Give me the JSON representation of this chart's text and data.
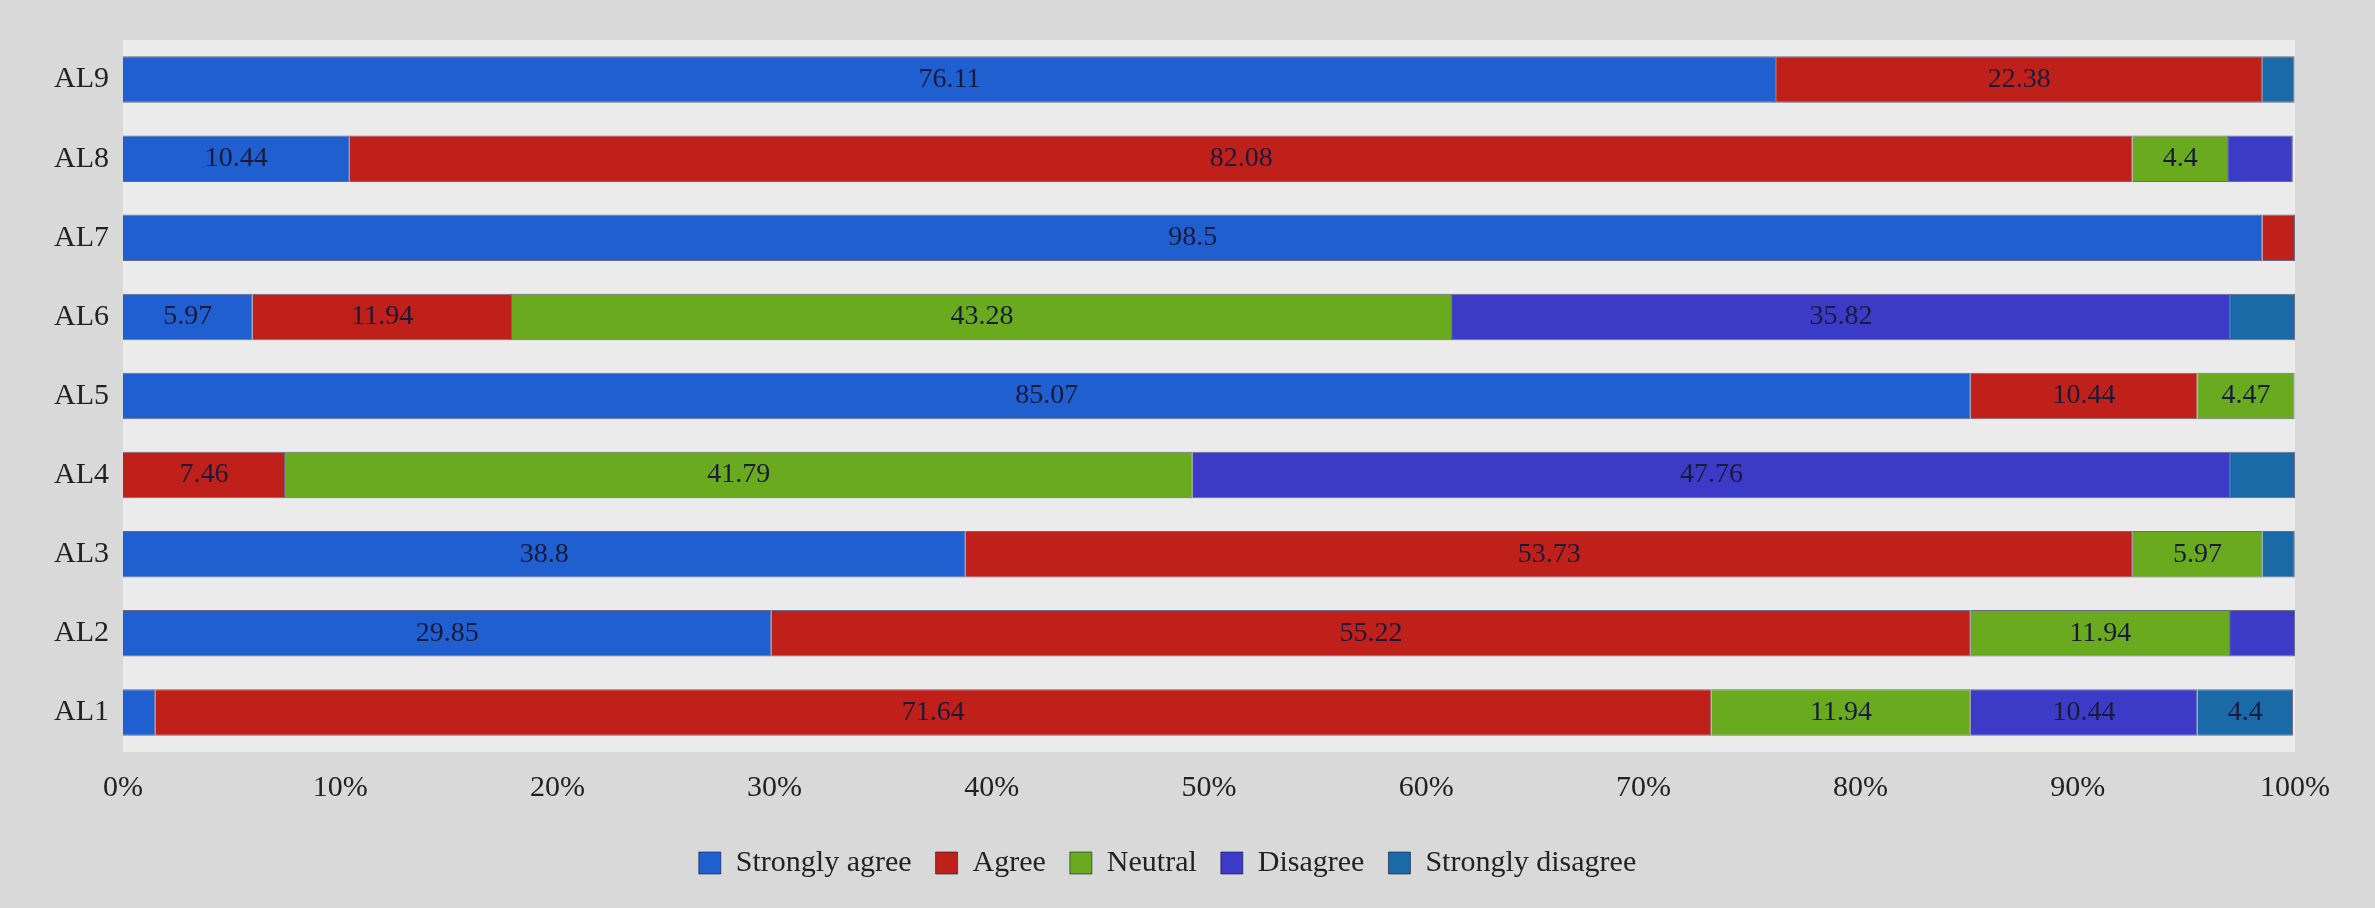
{
  "chart_data": {
    "type": "bar",
    "orientation": "horizontal",
    "stacked": true,
    "categories": [
      "AL9",
      "AL8",
      "AL7",
      "AL6",
      "AL5",
      "AL4",
      "AL3",
      "AL2",
      "AL1"
    ],
    "series": [
      {
        "name": "Strongly agree",
        "color": "#1f5fd0",
        "values": [
          76.11,
          10.44,
          98.5,
          5.97,
          85.07,
          null,
          38.8,
          29.85,
          1.49
        ],
        "value_labels": [
          "76.11",
          "10.44",
          "98.5",
          "5.97",
          "85.07",
          null,
          "38.8",
          "29.85",
          null
        ]
      },
      {
        "name": "Agree",
        "color": "#c0201a",
        "values": [
          22.38,
          82.08,
          1.5,
          11.94,
          10.44,
          7.46,
          53.73,
          55.22,
          71.64
        ],
        "value_labels": [
          "22.38",
          "82.08",
          null,
          "11.94",
          "10.44",
          "7.46",
          "53.73",
          "55.22",
          "71.64"
        ]
      },
      {
        "name": "Neutral",
        "color": "#6aaa1e",
        "values": [
          null,
          4.4,
          null,
          43.28,
          4.47,
          41.79,
          5.97,
          11.94,
          11.94
        ],
        "value_labels": [
          null,
          "4.4",
          null,
          "43.28",
          "4.47",
          "41.79",
          "5.97",
          "11.94",
          "11.94"
        ]
      },
      {
        "name": "Disagree",
        "color": "#3b3bc8",
        "values": [
          null,
          2.98,
          null,
          35.82,
          null,
          47.76,
          null,
          2.99,
          10.44
        ],
        "value_labels": [
          null,
          null,
          null,
          "35.82",
          null,
          "47.76",
          null,
          null,
          "10.44"
        ]
      },
      {
        "name": "Strongly disagree",
        "color": "#1a6aa8",
        "values": [
          1.49,
          null,
          null,
          2.99,
          null,
          2.99,
          1.49,
          null,
          4.4
        ],
        "value_labels": [
          null,
          null,
          null,
          null,
          null,
          null,
          null,
          null,
          "4.4"
        ]
      }
    ],
    "xlim": [
      0,
      100
    ],
    "xticks": [
      {
        "value": 0,
        "label": "0%"
      },
      {
        "value": 10,
        "label": "10%"
      },
      {
        "value": 20,
        "label": "20%"
      },
      {
        "value": 30,
        "label": "30%"
      },
      {
        "value": 40,
        "label": "40%"
      },
      {
        "value": 50,
        "label": "50%"
      },
      {
        "value": 60,
        "label": "60%"
      },
      {
        "value": 70,
        "label": "70%"
      },
      {
        "value": 80,
        "label": "80%"
      },
      {
        "value": 90,
        "label": "90%"
      },
      {
        "value": 100,
        "label": "100%"
      }
    ],
    "grid": false,
    "legend": "bottom"
  }
}
